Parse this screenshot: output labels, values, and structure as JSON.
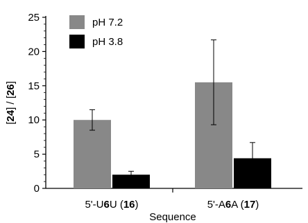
{
  "chart_data": {
    "type": "bar",
    "title": "",
    "xlabel": "Sequence",
    "ylabel_parts": [
      "[",
      "24",
      "] / [",
      "26",
      "]"
    ],
    "ylim": [
      0,
      25
    ],
    "yticks": [
      0,
      5,
      10,
      15,
      20,
      25
    ],
    "grid": false,
    "legend_position": "top-left",
    "categories": [
      "5'-U6U (16)",
      "5'-A6A (17)"
    ],
    "category_label_parts": [
      {
        "pre": "5'-U",
        "bold_mid": "6",
        "mid": "U (",
        "bold_num": "16",
        "post": ")"
      },
      {
        "pre": "5'-A",
        "bold_mid": "6",
        "mid": "A (",
        "bold_num": "17",
        "post": ")"
      }
    ],
    "series": [
      {
        "name": "pH 7.2",
        "color": "#888888",
        "values": [
          10.0,
          15.5
        ],
        "error": [
          1.5,
          6.2
        ]
      },
      {
        "name": "pH 3.8",
        "color": "#000000",
        "values": [
          2.0,
          4.4
        ],
        "error": [
          0.5,
          2.3
        ]
      }
    ]
  }
}
